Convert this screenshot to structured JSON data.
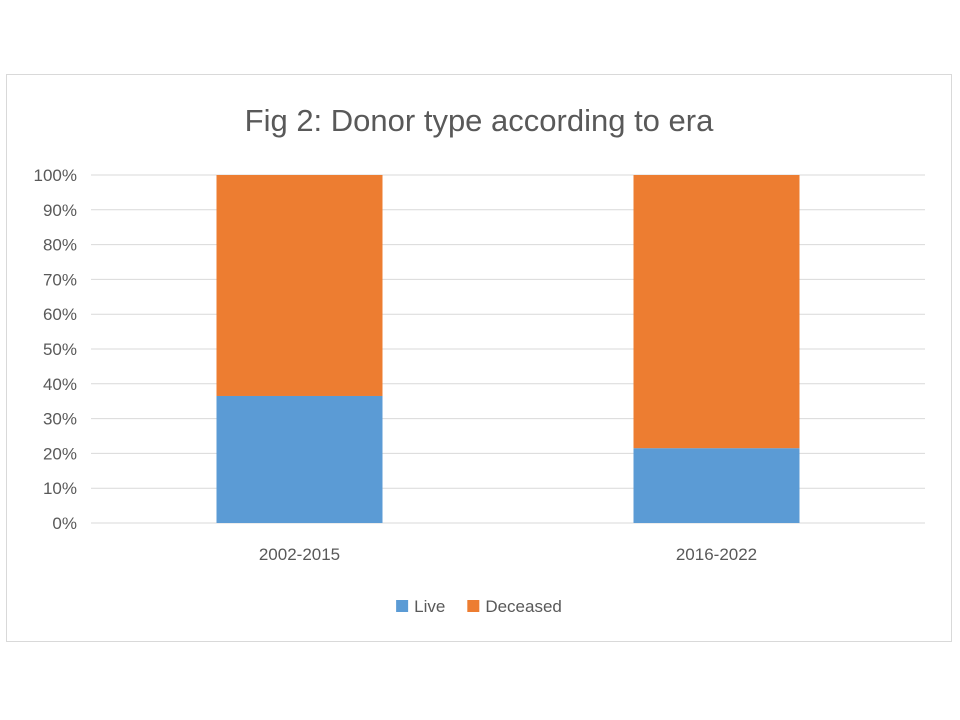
{
  "chart_data": {
    "type": "bar",
    "stacked": "percent",
    "title": "Fig 2: Donor type according to era",
    "xlabel": "",
    "ylabel": "",
    "categories": [
      "2002-2015",
      "2016-2022"
    ],
    "series": [
      {
        "name": "Live",
        "values": [
          0.365,
          0.215
        ],
        "color": "#5B9BD5"
      },
      {
        "name": "Deceased",
        "values": [
          0.635,
          0.785
        ],
        "color": "#ED7D31"
      }
    ],
    "ylim": [
      0,
      1
    ],
    "yticks": [
      "0%",
      "10%",
      "20%",
      "30%",
      "40%",
      "50%",
      "60%",
      "70%",
      "80%",
      "90%",
      "100%"
    ],
    "grid": true,
    "legend": "bottom"
  }
}
